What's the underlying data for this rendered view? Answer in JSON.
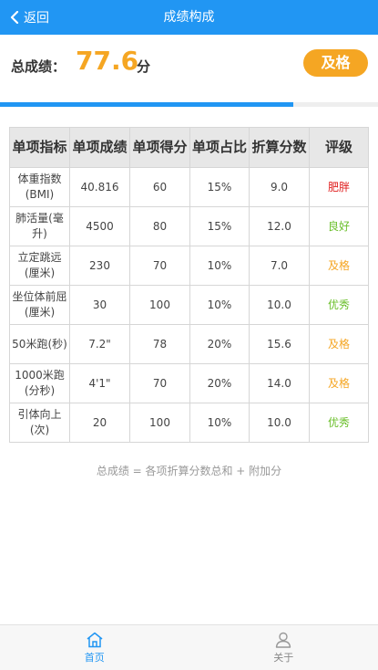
{
  "header": {
    "back_label": "返回",
    "title": "成绩构成"
  },
  "summary": {
    "label": "总成绩：",
    "score": "77.6",
    "unit": "分",
    "badge": "及格",
    "progress": 0.776
  },
  "table": {
    "headers": [
      "单项指标",
      "单项成绩",
      "单项得分",
      "单项占比",
      "折算分数",
      "评级"
    ],
    "rows": [
      [
        "体重指数(BMI)",
        "40.816",
        "60",
        "15%",
        "9.0",
        "肥胖"
      ],
      [
        "肺活量(毫升)",
        "4500",
        "80",
        "15%",
        "12.0",
        "良好"
      ],
      [
        "立定跳远(厘米)",
        "230",
        "70",
        "10%",
        "7.0",
        "及格"
      ],
      [
        "坐位体前屈(厘米)",
        "30",
        "100",
        "10%",
        "10.0",
        "优秀"
      ],
      [
        "50米跑(秒)",
        "7.2\"",
        "78",
        "20%",
        "15.6",
        "及格"
      ],
      [
        "1000米跑(分秒)",
        "4'1\"",
        "70",
        "20%",
        "14.0",
        "及格"
      ],
      [
        "引体向上(次)",
        "20",
        "100",
        "10%",
        "10.0",
        "优秀"
      ]
    ]
  },
  "formula": "总成绩 = 各项折算分数总和 + 附加分",
  "tabbar": {
    "home_label": "首页",
    "about_label": "关于"
  },
  "colors": {
    "primary": "#2196f3",
    "pass": "#f5a623",
    "fat": "#e01e1e",
    "good": "#6abf2a"
  }
}
